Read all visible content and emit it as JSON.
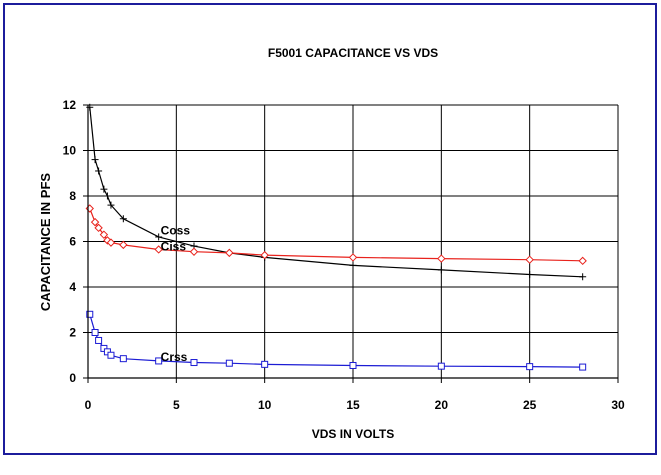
{
  "chart_data": {
    "type": "line",
    "title": "F5001 CAPACITANCE VS VDS",
    "xlabel": "VDS IN VOLTS",
    "ylabel": "CAPACITANCE IN PFS",
    "xlim": [
      0,
      30
    ],
    "ylim": [
      0,
      12
    ],
    "xticks": [
      0,
      5,
      10,
      15,
      20,
      25,
      30
    ],
    "yticks": [
      0,
      2,
      4,
      6,
      8,
      10,
      12
    ],
    "grid": true,
    "colors": {
      "frame": "#1c1c9c",
      "grid": "#000000"
    },
    "series": [
      {
        "name": "Coss",
        "color": "#000000",
        "marker": "plus",
        "x": [
          0.1,
          0.4,
          0.6,
          0.9,
          1.1,
          1.3,
          2,
          4,
          6,
          8,
          10,
          15,
          20,
          25,
          28
        ],
        "y": [
          11.9,
          9.6,
          9.1,
          8.3,
          8.0,
          7.6,
          7.0,
          6.2,
          5.8,
          5.5,
          5.3,
          4.95,
          4.75,
          4.55,
          4.45
        ]
      },
      {
        "name": "Ciss",
        "color": "#e8221c",
        "marker": "diamond",
        "x": [
          0.1,
          0.4,
          0.6,
          0.9,
          1.1,
          1.3,
          2,
          4,
          6,
          8,
          10,
          15,
          20,
          25,
          28
        ],
        "y": [
          7.45,
          6.85,
          6.6,
          6.3,
          6.05,
          5.95,
          5.85,
          5.65,
          5.55,
          5.5,
          5.4,
          5.3,
          5.25,
          5.2,
          5.15
        ]
      },
      {
        "name": "Crss",
        "color": "#1c1cd4",
        "marker": "square",
        "x": [
          0.1,
          0.4,
          0.6,
          0.9,
          1.1,
          1.3,
          2,
          4,
          6,
          8,
          10,
          15,
          20,
          25,
          28
        ],
        "y": [
          2.8,
          2.0,
          1.65,
          1.3,
          1.15,
          1.0,
          0.85,
          0.75,
          0.68,
          0.65,
          0.6,
          0.55,
          0.52,
          0.5,
          0.48
        ]
      }
    ]
  }
}
